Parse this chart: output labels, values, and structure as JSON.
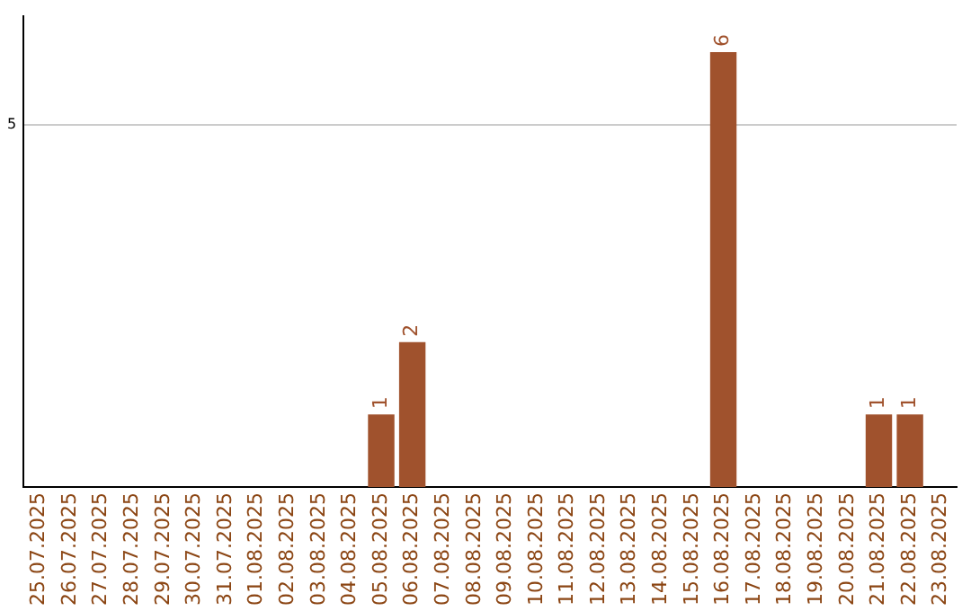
{
  "chart_data": {
    "type": "bar",
    "categories": [
      "25.07.2025",
      "26.07.2025",
      "27.07.2025",
      "28.07.2025",
      "29.07.2025",
      "30.07.2025",
      "31.07.2025",
      "01.08.2025",
      "02.08.2025",
      "03.08.2025",
      "04.08.2025",
      "05.08.2025",
      "06.08.2025",
      "07.08.2025",
      "08.08.2025",
      "09.08.2025",
      "10.08.2025",
      "11.08.2025",
      "12.08.2025",
      "13.08.2025",
      "14.08.2025",
      "15.08.2025",
      "16.08.2025",
      "17.08.2025",
      "18.08.2025",
      "19.08.2025",
      "20.08.2025",
      "21.08.2025",
      "22.08.2025",
      "23.08.2025"
    ],
    "values": [
      0,
      0,
      0,
      0,
      0,
      0,
      0,
      0,
      0,
      0,
      0,
      1,
      2,
      0,
      0,
      0,
      0,
      0,
      0,
      0,
      0,
      0,
      6,
      0,
      0,
      0,
      0,
      1,
      1,
      0
    ],
    "value_labels": [
      null,
      null,
      null,
      null,
      null,
      null,
      null,
      null,
      null,
      null,
      null,
      "1",
      "2",
      null,
      null,
      null,
      null,
      null,
      null,
      null,
      null,
      null,
      "6",
      null,
      null,
      null,
      null,
      "1",
      "1",
      null
    ],
    "color": "#a0522d",
    "ylim": [
      0,
      6.5
    ],
    "yticks": [
      5
    ],
    "grid": "y"
  }
}
